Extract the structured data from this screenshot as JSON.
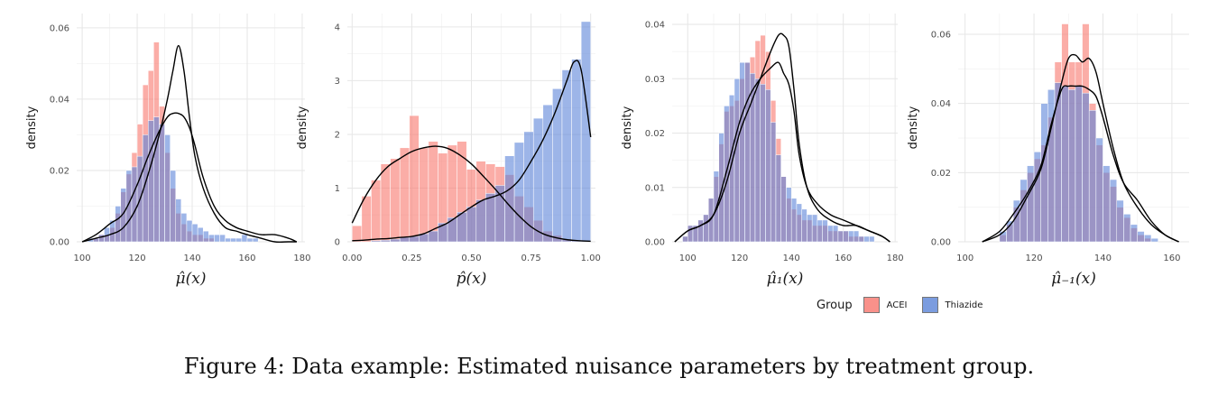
{
  "caption": "Figure 4: Data example: Estimated nuisance parameters by treatment group.",
  "legend": {
    "title": "Group",
    "items": [
      {
        "label": "ACEI",
        "color": "#f8766d"
      },
      {
        "label": "Thiazide",
        "color": "#5b84d8"
      }
    ]
  },
  "chart_data": [
    {
      "type": "histogram",
      "ylabel": "density",
      "xlabel": "μ̂(x)",
      "xlim": [
        98,
        181
      ],
      "ylim": [
        0,
        0.064
      ],
      "x_ticks": [
        100,
        120,
        140,
        160,
        180
      ],
      "y_ticks": [
        0.0,
        0.02,
        0.04,
        0.06
      ],
      "y_tick_labels": [
        "0.00",
        "0.02",
        "0.04",
        "0.06"
      ],
      "bin_start": 100,
      "bin_width": 2,
      "series": [
        {
          "name": "ACEI",
          "values": [
            0.0,
            0.0,
            0.001,
            0.002,
            0.002,
            0.004,
            0.008,
            0.014,
            0.019,
            0.025,
            0.033,
            0.044,
            0.048,
            0.056,
            0.038,
            0.025,
            0.015,
            0.008,
            0.005,
            0.003,
            0.002,
            0.002,
            0.001,
            0.001,
            0.0,
            0.0,
            0.0,
            0.0,
            0.0,
            0.0,
            0.0,
            0.0,
            0.0,
            0.0,
            0.0,
            0.0,
            0.0,
            0.0,
            0.0
          ]
        },
        {
          "name": "Thiazide",
          "values": [
            0.0,
            0.001,
            0.001,
            0.002,
            0.004,
            0.006,
            0.01,
            0.015,
            0.02,
            0.021,
            0.024,
            0.03,
            0.034,
            0.035,
            0.033,
            0.03,
            0.02,
            0.012,
            0.008,
            0.006,
            0.005,
            0.004,
            0.003,
            0.002,
            0.002,
            0.002,
            0.001,
            0.001,
            0.001,
            0.002,
            0.001,
            0.001,
            0.0,
            0.0,
            0.0,
            0.0,
            0.0,
            0.0,
            0.0
          ]
        }
      ],
      "density": [
        {
          "name": "ACEI",
          "x": [
            100,
            105,
            110,
            115,
            120,
            124,
            128,
            131,
            133,
            135,
            137,
            139,
            141,
            144,
            148,
            152,
            156,
            160,
            165,
            170,
            175,
            178
          ],
          "y": [
            0.0,
            0.001,
            0.002,
            0.004,
            0.01,
            0.019,
            0.03,
            0.04,
            0.048,
            0.055,
            0.048,
            0.035,
            0.024,
            0.015,
            0.008,
            0.004,
            0.003,
            0.002,
            0.001,
            0.0,
            0.0,
            0.0
          ]
        },
        {
          "name": "Thiazide",
          "x": [
            100,
            105,
            110,
            115,
            120,
            124,
            128,
            131,
            133,
            135,
            137,
            139,
            141,
            144,
            148,
            152,
            156,
            160,
            165,
            170,
            175,
            178
          ],
          "y": [
            0.0,
            0.002,
            0.005,
            0.008,
            0.016,
            0.024,
            0.031,
            0.035,
            0.036,
            0.036,
            0.035,
            0.032,
            0.027,
            0.018,
            0.01,
            0.006,
            0.004,
            0.003,
            0.002,
            0.002,
            0.001,
            0.0
          ]
        }
      ]
    },
    {
      "type": "histogram",
      "ylabel": "density",
      "xlabel": "p̂(x)",
      "xlim": [
        -0.02,
        1.02
      ],
      "ylim": [
        0,
        4.25
      ],
      "x_ticks": [
        0.0,
        0.25,
        0.5,
        0.75,
        1.0
      ],
      "x_tick_labels": [
        "0.00",
        "0.25",
        "0.50",
        "0.75",
        "1.00"
      ],
      "y_ticks": [
        0,
        1,
        2,
        3,
        4
      ],
      "y_tick_labels": [
        "0",
        "1",
        "2",
        "3",
        "4"
      ],
      "bin_start": 0.0,
      "bin_width": 0.04,
      "series": [
        {
          "name": "ACEI",
          "values": [
            0.3,
            0.85,
            1.15,
            1.45,
            1.55,
            1.75,
            2.35,
            1.75,
            1.87,
            1.65,
            1.8,
            1.87,
            1.35,
            1.5,
            1.45,
            1.4,
            1.25,
            0.85,
            0.65,
            0.4,
            0.2,
            0.12,
            0.05,
            0.02,
            0.0
          ]
        },
        {
          "name": "Thiazide",
          "values": [
            0.0,
            0.0,
            0.02,
            0.03,
            0.05,
            0.08,
            0.1,
            0.15,
            0.2,
            0.35,
            0.45,
            0.55,
            0.65,
            0.78,
            0.9,
            1.05,
            1.6,
            1.85,
            2.05,
            2.3,
            2.55,
            2.85,
            3.2,
            3.4,
            4.1
          ]
        }
      ],
      "density": [
        {
          "name": "ACEI",
          "x": [
            0.0,
            0.05,
            0.1,
            0.15,
            0.2,
            0.25,
            0.3,
            0.35,
            0.4,
            0.45,
            0.5,
            0.55,
            0.6,
            0.65,
            0.7,
            0.75,
            0.8,
            0.85,
            0.9,
            0.95,
            1.0
          ],
          "y": [
            0.35,
            0.8,
            1.15,
            1.4,
            1.55,
            1.68,
            1.75,
            1.78,
            1.74,
            1.62,
            1.45,
            1.22,
            0.98,
            0.72,
            0.48,
            0.28,
            0.15,
            0.08,
            0.04,
            0.02,
            0.01
          ]
        },
        {
          "name": "Thiazide",
          "x": [
            0.0,
            0.05,
            0.1,
            0.15,
            0.2,
            0.25,
            0.3,
            0.35,
            0.4,
            0.45,
            0.5,
            0.55,
            0.6,
            0.65,
            0.7,
            0.75,
            0.8,
            0.85,
            0.9,
            0.93,
            0.96,
            1.0
          ],
          "y": [
            0.02,
            0.03,
            0.05,
            0.06,
            0.08,
            0.1,
            0.15,
            0.25,
            0.35,
            0.5,
            0.65,
            0.78,
            0.85,
            0.95,
            1.15,
            1.5,
            1.9,
            2.4,
            3.0,
            3.35,
            3.2,
            1.95
          ]
        }
      ]
    },
    {
      "type": "histogram",
      "ylabel": "density",
      "xlabel": "μ̂₁(x)",
      "xlim": [
        94,
        181
      ],
      "ylim": [
        0,
        0.042
      ],
      "x_ticks": [
        100,
        120,
        140,
        160,
        180
      ],
      "y_ticks": [
        0.0,
        0.01,
        0.02,
        0.03,
        0.04
      ],
      "y_tick_labels": [
        "0.00",
        "0.01",
        "0.02",
        "0.03",
        "0.04"
      ],
      "bin_start": 96,
      "bin_width": 2,
      "series": [
        {
          "name": "ACEI",
          "values": [
            0.0,
            0.001,
            0.003,
            0.003,
            0.004,
            0.005,
            0.008,
            0.012,
            0.018,
            0.024,
            0.025,
            0.026,
            0.03,
            0.033,
            0.034,
            0.037,
            0.038,
            0.035,
            0.026,
            0.019,
            0.012,
            0.008,
            0.006,
            0.005,
            0.004,
            0.004,
            0.003,
            0.003,
            0.003,
            0.002,
            0.002,
            0.002,
            0.002,
            0.001,
            0.001,
            0.001,
            0.0,
            0.0,
            0.0,
            0.0,
            0.0
          ]
        },
        {
          "name": "Thiazide",
          "values": [
            0.0,
            0.001,
            0.003,
            0.003,
            0.004,
            0.005,
            0.008,
            0.013,
            0.02,
            0.025,
            0.027,
            0.03,
            0.033,
            0.033,
            0.031,
            0.03,
            0.029,
            0.028,
            0.022,
            0.016,
            0.012,
            0.01,
            0.008,
            0.007,
            0.006,
            0.005,
            0.005,
            0.004,
            0.004,
            0.003,
            0.003,
            0.002,
            0.002,
            0.002,
            0.002,
            0.001,
            0.001,
            0.001,
            0.0,
            0.0,
            0.0
          ]
        }
      ],
      "density": [
        {
          "name": "ACEI",
          "x": [
            95,
            100,
            105,
            110,
            115,
            120,
            124,
            128,
            132,
            135,
            137,
            139,
            141,
            143,
            146,
            150,
            155,
            160,
            165,
            170,
            175,
            178
          ],
          "y": [
            0.0,
            0.002,
            0.003,
            0.005,
            0.011,
            0.02,
            0.025,
            0.03,
            0.035,
            0.038,
            0.038,
            0.036,
            0.028,
            0.018,
            0.01,
            0.006,
            0.004,
            0.003,
            0.003,
            0.002,
            0.001,
            0.0
          ]
        },
        {
          "name": "Thiazide",
          "x": [
            95,
            100,
            105,
            110,
            115,
            120,
            124,
            128,
            132,
            135,
            137,
            139,
            141,
            143,
            146,
            150,
            155,
            160,
            165,
            170,
            175,
            178
          ],
          "y": [
            0.0,
            0.002,
            0.003,
            0.005,
            0.013,
            0.022,
            0.027,
            0.03,
            0.032,
            0.033,
            0.031,
            0.029,
            0.024,
            0.016,
            0.01,
            0.007,
            0.005,
            0.004,
            0.003,
            0.002,
            0.001,
            0.0
          ]
        }
      ]
    },
    {
      "type": "histogram",
      "ylabel": "density",
      "xlabel": "μ̂₋₁(x)",
      "xlim": [
        98,
        165
      ],
      "ylim": [
        0,
        0.066
      ],
      "x_ticks": [
        100,
        120,
        140,
        160
      ],
      "y_ticks": [
        0.0,
        0.02,
        0.04,
        0.06
      ],
      "y_tick_labels": [
        "0.00",
        "0.02",
        "0.04",
        "0.06"
      ],
      "bin_start": 110,
      "bin_width": 2,
      "series": [
        {
          "name": "ACEI",
          "values": [
            0.002,
            0.005,
            0.01,
            0.015,
            0.02,
            0.024,
            0.028,
            0.036,
            0.052,
            0.063,
            0.052,
            0.052,
            0.063,
            0.04,
            0.028,
            0.02,
            0.016,
            0.01,
            0.007,
            0.004,
            0.002,
            0.001,
            0.0,
            0.0,
            0.0,
            0.0
          ]
        },
        {
          "name": "Thiazide",
          "values": [
            0.003,
            0.006,
            0.012,
            0.018,
            0.022,
            0.026,
            0.04,
            0.044,
            0.046,
            0.045,
            0.044,
            0.045,
            0.043,
            0.038,
            0.03,
            0.022,
            0.018,
            0.012,
            0.008,
            0.005,
            0.003,
            0.002,
            0.001,
            0.0,
            0.0,
            0.0
          ]
        }
      ],
      "density": [
        {
          "name": "ACEI",
          "x": [
            105,
            110,
            114,
            118,
            122,
            125,
            128,
            130,
            132,
            134,
            136,
            138,
            140,
            143,
            146,
            150,
            154,
            158,
            162
          ],
          "y": [
            0.0,
            0.002,
            0.006,
            0.013,
            0.021,
            0.033,
            0.046,
            0.053,
            0.054,
            0.052,
            0.053,
            0.049,
            0.04,
            0.027,
            0.017,
            0.01,
            0.005,
            0.002,
            0.0
          ]
        },
        {
          "name": "Thiazide",
          "x": [
            105,
            110,
            114,
            118,
            122,
            125,
            128,
            130,
            132,
            134,
            136,
            138,
            140,
            143,
            146,
            150,
            154,
            158,
            162
          ],
          "y": [
            0.0,
            0.003,
            0.008,
            0.014,
            0.022,
            0.034,
            0.044,
            0.045,
            0.045,
            0.045,
            0.044,
            0.042,
            0.036,
            0.025,
            0.017,
            0.012,
            0.006,
            0.002,
            0.0
          ]
        }
      ]
    }
  ]
}
